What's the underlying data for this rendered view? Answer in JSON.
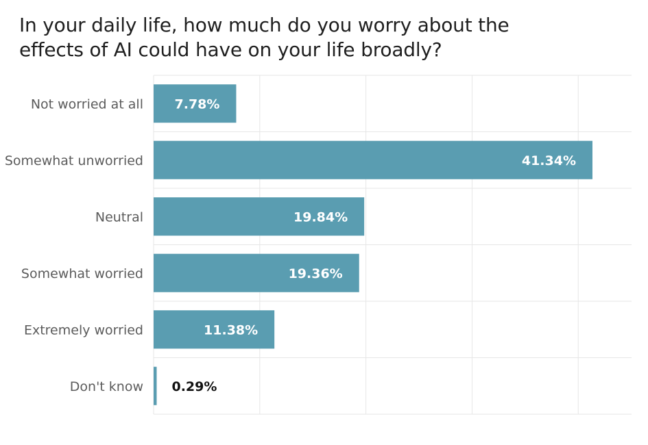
{
  "chart_data": {
    "type": "bar",
    "orientation": "horizontal",
    "title": "In your daily life, how much do you worry about the effects of AI could have on your life broadly?",
    "categories": [
      "Not worried at all",
      "Somewhat unworried",
      "Neutral",
      "Somewhat worried",
      "Extremely worried",
      "Don't know"
    ],
    "values": [
      7.78,
      41.34,
      19.84,
      19.36,
      11.38,
      0.29
    ],
    "value_labels": [
      "7.78%",
      "41.34%",
      "19.84%",
      "19.36%",
      "11.38%",
      "0.29%"
    ],
    "xlim": [
      0,
      45
    ],
    "grid": true,
    "xlabel": "",
    "ylabel": "",
    "bar_color": "#5a9db1",
    "inside_label_color": "#ffffff",
    "outside_label_color": "#111111",
    "grid_color": "#e6e6e6"
  }
}
